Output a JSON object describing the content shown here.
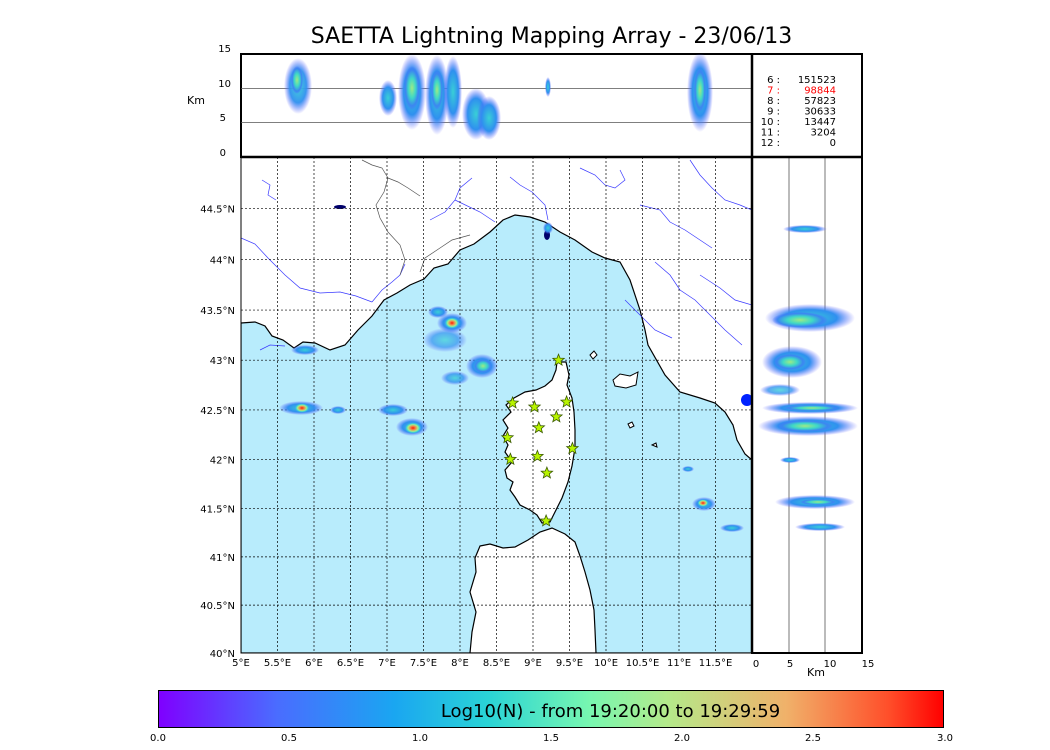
{
  "title": "SAETTA Lightning Mapping Array - 23/06/13",
  "units": {
    "top_ylabel": "Km",
    "right_xlabel": "Km"
  },
  "top_panel": {
    "y_ticks": [
      "15",
      "10",
      "5",
      "0"
    ]
  },
  "counts": [
    {
      "label": "6  :",
      "value": "151523",
      "color": "#000000"
    },
    {
      "label": "7  :",
      "value": "98844",
      "color": "#ff0000"
    },
    {
      "label": "8  :",
      "value": "57823",
      "color": "#000000"
    },
    {
      "label": "9  :",
      "value": "30633",
      "color": "#000000"
    },
    {
      "label": "10 :",
      "value": "13447",
      "color": "#000000"
    },
    {
      "label": "11 :",
      "value": "3204",
      "color": "#000000"
    },
    {
      "label": "12 :",
      "value": "0",
      "color": "#000000"
    }
  ],
  "map": {
    "lon_ticks": [
      "5°E",
      "5.5°E",
      "6°E",
      "6.5°E",
      "7°E",
      "7.5°E",
      "8°E",
      "8.5°E",
      "9°E",
      "9.5°E",
      "10°E",
      "10.5°E",
      "11°E",
      "11.5°E"
    ],
    "lat_ticks": [
      "44.5°N",
      "44°N",
      "43.5°N",
      "43°N",
      "42.5°N",
      "42°N",
      "41.5°N",
      "41°N",
      "40.5°N",
      "40°N"
    ],
    "sea_color": "#b8ecfc",
    "station_color": "#b8f400",
    "stations": [
      {
        "lon": 9.35,
        "lat": 43.0
      },
      {
        "lon": 8.72,
        "lat": 42.57
      },
      {
        "lon": 9.02,
        "lat": 42.53
      },
      {
        "lon": 9.46,
        "lat": 42.58
      },
      {
        "lon": 9.32,
        "lat": 42.43
      },
      {
        "lon": 9.08,
        "lat": 42.32
      },
      {
        "lon": 8.65,
        "lat": 42.22
      },
      {
        "lon": 9.54,
        "lat": 42.11
      },
      {
        "lon": 8.69,
        "lat": 42.0
      },
      {
        "lon": 9.06,
        "lat": 42.03
      },
      {
        "lon": 9.19,
        "lat": 41.86
      },
      {
        "lon": 9.18,
        "lat": 41.37
      }
    ]
  },
  "right_panel": {
    "x_ticks": [
      "0",
      "5",
      "10",
      "15"
    ]
  },
  "colorbar": {
    "label": "Log10(N) - from 19:20:00 to 19:29:59",
    "ticks": [
      "0.0",
      "0.5",
      "1.0",
      "1.5",
      "2.0",
      "2.5",
      "3.0"
    ]
  }
}
